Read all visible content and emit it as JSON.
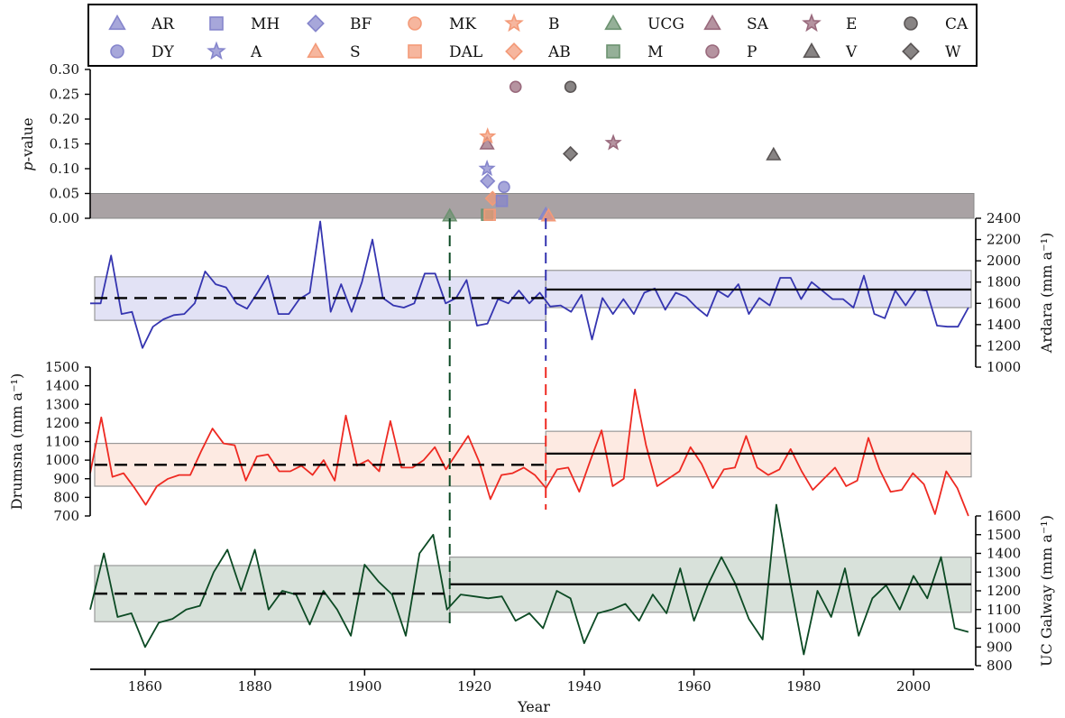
{
  "figure": {
    "xlabel": "Year",
    "colors": {
      "ardara": "#3535b0",
      "drumsna": "#ee2a22",
      "ucg": "#0c4a24",
      "grey_band": "#9a9294"
    }
  },
  "chart_data": [
    {
      "id": "pvalue",
      "type": "scatter",
      "ylabel_prefix": "p",
      "ylabel_suffix": "-value",
      "ylim": [
        0,
        0.3
      ],
      "yticks": [
        "0.00",
        "0.05",
        "0.10",
        "0.15",
        "0.20",
        "0.25",
        "0.30"
      ],
      "significance_band": [
        0,
        0.05
      ],
      "legend_placement": "top",
      "legend": [
        {
          "label": "AR",
          "marker": "triangle",
          "color": "#8585cc"
        },
        {
          "label": "MH",
          "marker": "square",
          "color": "#8585cc"
        },
        {
          "label": "BF",
          "marker": "diamond",
          "color": "#8585cc"
        },
        {
          "label": "MK",
          "marker": "circle",
          "color": "#f39a78"
        },
        {
          "label": "B",
          "marker": "star",
          "color": "#f39a78"
        },
        {
          "label": "UCG",
          "marker": "triangle",
          "color": "#6c9270"
        },
        {
          "label": "SA",
          "marker": "triangle",
          "color": "#99697c"
        },
        {
          "label": "E",
          "marker": "star",
          "color": "#99697c"
        },
        {
          "label": "CA",
          "marker": "circle",
          "color": "#5a5555"
        },
        {
          "label": "DY",
          "marker": "circle",
          "color": "#8585cc"
        },
        {
          "label": "A",
          "marker": "star",
          "color": "#8585cc"
        },
        {
          "label": "S",
          "marker": "triangle",
          "color": "#f39a78"
        },
        {
          "label": "DAL",
          "marker": "square",
          "color": "#f39a78"
        },
        {
          "label": "AB",
          "marker": "diamond",
          "color": "#f39a78"
        },
        {
          "label": "M",
          "marker": "square",
          "color": "#6c9270"
        },
        {
          "label": "P",
          "marker": "circle",
          "color": "#99697c"
        },
        {
          "label": "V",
          "marker": "triangle",
          "color": "#5a5555"
        },
        {
          "label": "W",
          "marker": "diamond",
          "color": "#5a5555"
        }
      ],
      "points": [
        {
          "series": "UCG",
          "x": 1915.5,
          "y": 0.005
        },
        {
          "series": "SA",
          "x": 1922.3,
          "y": 0.15
        },
        {
          "series": "B",
          "x": 1922.4,
          "y": 0.165
        },
        {
          "series": "A",
          "x": 1922.3,
          "y": 0.1
        },
        {
          "series": "BF",
          "x": 1922.4,
          "y": 0.075
        },
        {
          "series": "AB",
          "x": 1923.3,
          "y": 0.04
        },
        {
          "series": "MH",
          "x": 1925.0,
          "y": 0.035
        },
        {
          "series": "DY",
          "x": 1925.4,
          "y": 0.063
        },
        {
          "series": "M",
          "x": 1922.3,
          "y": 0.007
        },
        {
          "series": "DAL",
          "x": 1922.8,
          "y": 0.007
        },
        {
          "series": "P",
          "x": 1927.5,
          "y": 0.265
        },
        {
          "series": "AR",
          "x": 1933.0,
          "y": 0.008
        },
        {
          "series": "S",
          "x": 1933.5,
          "y": 0.005
        },
        {
          "series": "CA",
          "x": 1937.5,
          "y": 0.265
        },
        {
          "series": "W",
          "x": 1937.5,
          "y": 0.13
        },
        {
          "series": "E",
          "x": 1945.3,
          "y": 0.152
        },
        {
          "series": "V",
          "x": 1974.5,
          "y": 0.128
        }
      ]
    },
    {
      "id": "ardara",
      "type": "line",
      "ylabel": "Ardara (mm a⁻¹)",
      "ylim": [
        1000,
        2400
      ],
      "yticks": [
        "1000",
        "1200",
        "1400",
        "1600",
        "1800",
        "2000",
        "2200",
        "2400"
      ],
      "axis_side": "right",
      "change_year": 1933,
      "mean_before": 1650,
      "band_before": [
        1440,
        1850
      ],
      "mean_after": 1730,
      "band_after": [
        1560,
        1910
      ],
      "x_start": 1850,
      "values": [
        1600,
        1600,
        2050,
        1500,
        1520,
        1180,
        1380,
        1450,
        1490,
        1500,
        1600,
        1900,
        1780,
        1750,
        1600,
        1550,
        1700,
        1860,
        1500,
        1500,
        1640,
        1700,
        2370,
        1520,
        1780,
        1520,
        1800,
        2200,
        1650,
        1580,
        1560,
        1600,
        1880,
        1880,
        1600,
        1650,
        1820,
        1390,
        1410,
        1640,
        1600,
        1720,
        1600,
        1700,
        1570,
        1580,
        1520,
        1680,
        1260,
        1650,
        1500,
        1640,
        1500,
        1700,
        1740,
        1540,
        1700,
        1660,
        1560,
        1480,
        1720,
        1660,
        1780,
        1500,
        1650,
        1580,
        1840,
        1840,
        1640,
        1800,
        1720,
        1640,
        1640,
        1560,
        1860,
        1500,
        1460,
        1720,
        1580,
        1730,
        1720,
        1390,
        1380,
        1380,
        1560
      ]
    },
    {
      "id": "drumsna",
      "type": "line",
      "ylabel": "Drumsna (mm a⁻¹)",
      "ylim": [
        700,
        1500
      ],
      "yticks": [
        "700",
        "800",
        "900",
        "1000",
        "1100",
        "1200",
        "1300",
        "1400",
        "1500"
      ],
      "axis_side": "left",
      "change_year": 1933,
      "mean_before": 975,
      "band_before": [
        860,
        1090
      ],
      "mean_after": 1035,
      "band_after": [
        910,
        1155
      ],
      "x_start": 1850,
      "values": [
        930,
        1230,
        910,
        930,
        850,
        760,
        860,
        900,
        920,
        920,
        1050,
        1170,
        1090,
        1080,
        890,
        1020,
        1030,
        940,
        940,
        970,
        920,
        1000,
        890,
        1240,
        970,
        1000,
        940,
        1210,
        960,
        960,
        1000,
        1070,
        950,
        1040,
        1130,
        990,
        790,
        920,
        930,
        960,
        920,
        850,
        950,
        960,
        830,
        1000,
        1160,
        860,
        900,
        1380,
        1080,
        860,
        900,
        940,
        1070,
        980,
        850,
        950,
        960,
        1130,
        960,
        920,
        950,
        1060,
        940,
        840,
        900,
        960,
        860,
        890,
        1120,
        950,
        830,
        840,
        930,
        870,
        710,
        940,
        850,
        700
      ]
    },
    {
      "id": "ucg",
      "type": "line",
      "ylabel": "UC Galway (mm a⁻¹)",
      "ylim": [
        800,
        1600
      ],
      "yticks": [
        "800",
        "900",
        "1000",
        "1100",
        "1200",
        "1300",
        "1400",
        "1500",
        "1600"
      ],
      "axis_side": "right",
      "change_year": 1915.5,
      "mean_before": 1185,
      "band_before": [
        1035,
        1335
      ],
      "mean_after": 1235,
      "band_after": [
        1085,
        1380
      ],
      "x_start": 1850,
      "values": [
        1100,
        1400,
        1060,
        1080,
        900,
        1030,
        1050,
        1100,
        1120,
        1300,
        1420,
        1200,
        1420,
        1100,
        1200,
        1180,
        1020,
        1200,
        1100,
        960,
        1340,
        1250,
        1180,
        960,
        1400,
        1500,
        1100,
        1180,
        1170,
        1160,
        1170,
        1040,
        1080,
        1000,
        1200,
        1160,
        920,
        1080,
        1100,
        1130,
        1040,
        1180,
        1080,
        1320,
        1040,
        1230,
        1380,
        1240,
        1050,
        940,
        1660,
        1250,
        860,
        1200,
        1060,
        1320,
        960,
        1160,
        1230,
        1100,
        1280,
        1160,
        1380,
        1000,
        980
      ]
    }
  ]
}
